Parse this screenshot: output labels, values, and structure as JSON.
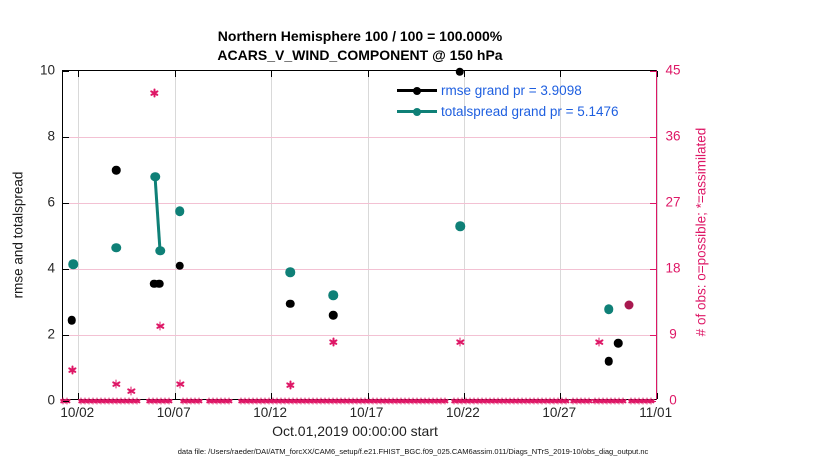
{
  "title": {
    "line1": "Northern Hemisphere 100 / 100 = 100.000%",
    "line2": "ACARS_V_WIND_COMPONENT @ 150 hPa"
  },
  "legend": {
    "items": [
      {
        "label": "rmse grand pr = 3.9098",
        "series": "rmse"
      },
      {
        "label": "totalspread grand pr = 5.1476",
        "series": "totalspread"
      }
    ]
  },
  "colors": {
    "crimson": "#de1766",
    "teal": "#0f8077",
    "black": "#000000",
    "overlap_dot": "#a8194f",
    "legend_text": "#1e5fe0",
    "grid_pink": "#f3c1d3",
    "grid_gray": "#d9d9d9"
  },
  "chart_data": {
    "type": "scatter",
    "title": "Northern Hemisphere 100 / 100 = 100.000%",
    "subtitle": "ACARS_V_WIND_COMPONENT @ 150 hPa",
    "x_axis": {
      "label": "Oct.01,2019 00:00:00 start",
      "tick_labels": [
        "10/02",
        "10/07",
        "10/12",
        "10/17",
        "10/22",
        "10/27",
        "11/01"
      ],
      "tick_days": [
        2,
        7,
        12,
        17,
        22,
        27,
        32
      ],
      "range_days": [
        1.2,
        32.05
      ],
      "grid": true
    },
    "y_left": {
      "label": "rmse and totalspread",
      "ticks": [
        0,
        2,
        4,
        6,
        8,
        10
      ],
      "range": [
        0,
        10
      ],
      "grid_values": [
        2,
        4,
        6,
        8
      ]
    },
    "y_right": {
      "label": "# of obs: o=possible; *=assimilated",
      "ticks": [
        0,
        9,
        18,
        27,
        36,
        45
      ],
      "range": [
        0,
        45
      ]
    },
    "legend_position": "top-right-inside",
    "series": [
      {
        "name": "rmse",
        "marker": "dot",
        "axis": "left",
        "color_key": "black",
        "size": 8.5,
        "grand_pr": 3.9098,
        "points": [
          [
            1.67,
            2.45
          ],
          [
            3.96,
            7.0
          ],
          [
            5.95,
            3.55
          ],
          [
            6.2,
            3.55
          ],
          [
            7.27,
            4.1
          ],
          [
            13.0,
            2.95
          ],
          [
            15.22,
            2.6
          ],
          [
            21.78,
            9.97
          ],
          [
            29.5,
            1.2
          ],
          [
            30.0,
            1.75
          ]
        ]
      },
      {
        "name": "totalspread",
        "marker": "dot",
        "axis": "left",
        "color_key": "teal",
        "size": 9.5,
        "grand_pr": 5.1476,
        "segment": [
          [
            5.98,
            6.8
          ],
          [
            6.24,
            4.55
          ]
        ],
        "points": [
          [
            1.74,
            4.15
          ],
          [
            3.96,
            4.65
          ],
          [
            5.98,
            6.8
          ],
          [
            6.24,
            4.55
          ],
          [
            7.27,
            5.75
          ],
          [
            13.0,
            3.9
          ],
          [
            15.22,
            3.2
          ],
          [
            21.8,
            5.3
          ],
          [
            29.5,
            2.78
          ]
        ]
      },
      {
        "name": "assimilated-obs",
        "marker": "asterisk",
        "axis": "right",
        "color_key": "crimson",
        "size": 9,
        "points": [
          [
            1.7,
            4.2
          ],
          [
            3.96,
            2.3
          ],
          [
            4.73,
            1.4
          ],
          [
            5.96,
            42
          ],
          [
            6.24,
            10.2
          ],
          [
            7.27,
            2.3
          ],
          [
            13.0,
            2.2
          ],
          [
            15.22,
            8.1
          ],
          [
            21.8,
            8.0
          ],
          [
            29.0,
            8.1
          ]
        ]
      },
      {
        "name": "overlap-marker",
        "marker": "dot",
        "axis": "left",
        "color_key": "overlap_dot",
        "size": 9,
        "points": [
          [
            30.55,
            2.9
          ]
        ]
      }
    ],
    "zero_line_asterisk_day_ranges": [
      [
        1.21,
        1.62
      ],
      [
        2.14,
        5.15
      ],
      [
        5.67,
        6.91
      ],
      [
        7.43,
        8.26
      ],
      [
        8.78,
        10.02
      ],
      [
        10.44,
        21.17
      ],
      [
        21.49,
        27.4
      ],
      [
        27.66,
        28.49
      ],
      [
        28.8,
        30.3
      ],
      [
        30.67,
        31.81
      ]
    ]
  },
  "footer": {
    "text": "data file: /Users/raeder/DAI/ATM_forcXX/CAM6_setup/f.e21.FHIST_BGC.f09_025.CAM6assim.011/Diags_NTrS_2019-10/obs_diag_output.nc"
  }
}
